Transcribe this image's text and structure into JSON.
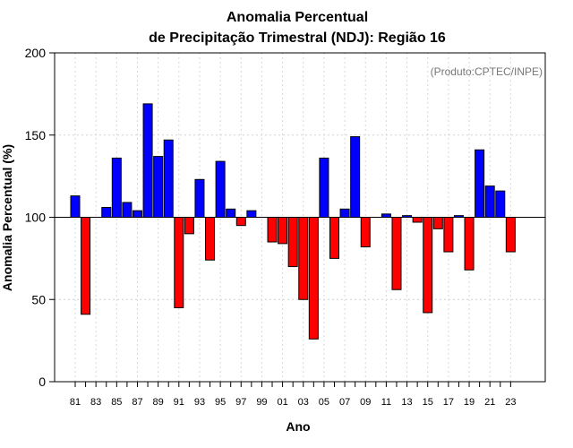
{
  "chart_data": {
    "type": "bar",
    "title_line1": "Anomalia Percentual",
    "title_line2": "de Precipitação Trimestral (NDJ): Região 16",
    "credit": "(Produto:CPTEC/INPE)",
    "xlabel": "Ano",
    "ylabel": "Anomalia Percentual (%)",
    "ylim": [
      0,
      200
    ],
    "yticks": [
      0,
      50,
      100,
      150,
      200
    ],
    "baseline": 100,
    "grid": true,
    "colors": {
      "above": "#0000ff",
      "below": "#ff0000",
      "outline": "#000000"
    },
    "years": [
      1981,
      1982,
      1983,
      1984,
      1985,
      1986,
      1987,
      1988,
      1989,
      1990,
      1991,
      1992,
      1993,
      1994,
      1995,
      1996,
      1997,
      1998,
      1999,
      2000,
      2001,
      2002,
      2003,
      2004,
      2005,
      2006,
      2007,
      2008,
      2009,
      2010,
      2011,
      2012,
      2013,
      2014,
      2015,
      2016,
      2017,
      2018,
      2019,
      2020,
      2021,
      2022,
      2023
    ],
    "categories": [
      "81",
      "82",
      "83",
      "84",
      "85",
      "86",
      "87",
      "88",
      "89",
      "90",
      "91",
      "92",
      "93",
      "94",
      "95",
      "96",
      "97",
      "98",
      "99",
      "00",
      "01",
      "02",
      "03",
      "04",
      "05",
      "06",
      "07",
      "08",
      "09",
      "10",
      "11",
      "12",
      "13",
      "14",
      "15",
      "16",
      "17",
      "18",
      "19",
      "20",
      "21",
      "22",
      "23"
    ],
    "tick_labels": [
      "81",
      "83",
      "85",
      "87",
      "89",
      "91",
      "93",
      "95",
      "97",
      "99",
      "01",
      "03",
      "05",
      "07",
      "09",
      "11",
      "13",
      "15",
      "17",
      "19",
      "21",
      "23"
    ],
    "values": [
      113,
      41,
      100,
      106,
      136,
      109,
      104,
      169,
      137,
      147,
      45,
      90,
      123,
      74,
      134,
      105,
      95,
      104,
      100,
      85,
      84,
      70,
      50,
      26,
      136,
      75,
      105,
      149,
      82,
      100,
      102,
      56,
      101,
      97,
      42,
      93,
      79,
      101,
      68,
      141,
      119,
      116,
      79
    ]
  }
}
